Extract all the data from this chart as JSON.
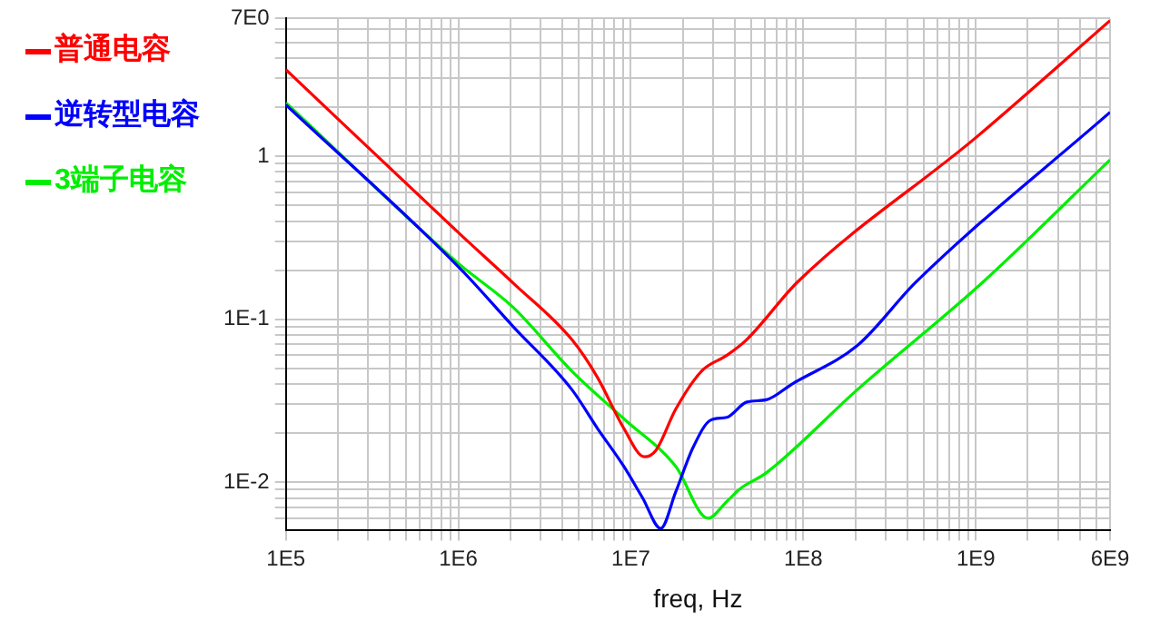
{
  "chart_data": {
    "type": "line",
    "xlabel": "freq, Hz",
    "log": "xy",
    "grid": true,
    "legend": "top left",
    "marker": "none",
    "line_style": "solid",
    "xlim": [
      100000,
      6000000000
    ],
    "ylim": [
      0.0051,
      7
    ],
    "xticks": [
      {
        "value": 100000,
        "label": "1E5"
      },
      {
        "value": 200000,
        "label": null
      },
      {
        "value": 300000,
        "label": null
      },
      {
        "value": 400000,
        "label": null
      },
      {
        "value": 500000,
        "label": null
      },
      {
        "value": 600000,
        "label": null
      },
      {
        "value": 700000,
        "label": null
      },
      {
        "value": 800000,
        "label": null
      },
      {
        "value": 900000,
        "label": null
      },
      {
        "value": 1000000,
        "label": "1E6"
      },
      {
        "value": 2000000,
        "label": null
      },
      {
        "value": 3000000,
        "label": null
      },
      {
        "value": 4000000,
        "label": null
      },
      {
        "value": 5000000,
        "label": null
      },
      {
        "value": 6000000,
        "label": null
      },
      {
        "value": 7000000,
        "label": null
      },
      {
        "value": 8000000,
        "label": null
      },
      {
        "value": 9000000,
        "label": null
      },
      {
        "value": 10000000,
        "label": "1E7"
      },
      {
        "value": 20000000,
        "label": null
      },
      {
        "value": 30000000,
        "label": null
      },
      {
        "value": 40000000,
        "label": null
      },
      {
        "value": 50000000,
        "label": null
      },
      {
        "value": 60000000,
        "label": null
      },
      {
        "value": 70000000,
        "label": null
      },
      {
        "value": 80000000,
        "label": null
      },
      {
        "value": 90000000,
        "label": null
      },
      {
        "value": 100000000,
        "label": "1E8"
      },
      {
        "value": 200000000,
        "label": null
      },
      {
        "value": 300000000,
        "label": null
      },
      {
        "value": 400000000,
        "label": null
      },
      {
        "value": 500000000,
        "label": null
      },
      {
        "value": 600000000,
        "label": null
      },
      {
        "value": 700000000,
        "label": null
      },
      {
        "value": 800000000,
        "label": null
      },
      {
        "value": 900000000,
        "label": null
      },
      {
        "value": 1000000000,
        "label": "1E9"
      },
      {
        "value": 2000000000,
        "label": null
      },
      {
        "value": 3000000000,
        "label": null
      },
      {
        "value": 4000000000,
        "label": null
      },
      {
        "value": 5000000000,
        "label": null
      },
      {
        "value": 6000000000,
        "label": "6E9"
      }
    ],
    "yticks": [
      {
        "value": 0.006,
        "label": null
      },
      {
        "value": 0.007,
        "label": null
      },
      {
        "value": 0.008,
        "label": null
      },
      {
        "value": 0.009,
        "label": null
      },
      {
        "value": 0.01,
        "label": "1E-2"
      },
      {
        "value": 0.02,
        "label": null
      },
      {
        "value": 0.03,
        "label": null
      },
      {
        "value": 0.04,
        "label": null
      },
      {
        "value": 0.05,
        "label": null
      },
      {
        "value": 0.06,
        "label": null
      },
      {
        "value": 0.07,
        "label": null
      },
      {
        "value": 0.08,
        "label": null
      },
      {
        "value": 0.09,
        "label": null
      },
      {
        "value": 0.1,
        "label": "1E-1"
      },
      {
        "value": 0.2,
        "label": null
      },
      {
        "value": 0.3,
        "label": null
      },
      {
        "value": 0.4,
        "label": null
      },
      {
        "value": 0.5,
        "label": null
      },
      {
        "value": 0.6,
        "label": null
      },
      {
        "value": 0.7,
        "label": null
      },
      {
        "value": 0.8,
        "label": null
      },
      {
        "value": 0.9,
        "label": null
      },
      1,
      {
        "value": 2,
        "label": null
      },
      {
        "value": 3,
        "label": null
      },
      {
        "value": 4,
        "label": null
      },
      {
        "value": 5,
        "label": null
      },
      {
        "value": 6,
        "label": null
      },
      {
        "value": 7,
        "label": "7E0"
      }
    ],
    "series": [
      {
        "name": "普通电容",
        "color": "#ff0000",
        "x": [
          100000,
          1000000,
          2100000,
          4550000,
          6400000,
          9100000,
          12000000,
          14000000,
          18200000,
          25700000,
          36000000,
          47000000,
          93000000,
          1000000000,
          6000000000
        ],
        "values": [
          3.4,
          0.34,
          0.165,
          0.075,
          0.044,
          0.0214,
          0.0143,
          0.0157,
          0.028,
          0.048,
          0.06,
          0.075,
          0.17,
          1.3,
          6.8
        ]
      },
      {
        "name": "逆转型电容",
        "color": "#0000ff",
        "x": [
          100000,
          1000000,
          2080000,
          4550000,
          6400000,
          9100000,
          11700000,
          14900000,
          18200000,
          23000000,
          29000000,
          36000000,
          47000000,
          61000000,
          86000000,
          206000000,
          450000000,
          6000000000
        ],
        "values": [
          2.07,
          0.21,
          0.09,
          0.037,
          0.0214,
          0.0125,
          0.008,
          0.0052,
          0.0087,
          0.0164,
          0.024,
          0.025,
          0.031,
          0.032,
          0.04,
          0.069,
          0.169,
          1.86
        ]
      },
      {
        "name": "3端子电容",
        "color": "#00ee00",
        "x": [
          100000,
          1000000,
          2080000,
          4550000,
          9100000,
          18200000,
          28000000,
          36000000,
          43000000,
          61000000,
          206000000,
          1100000000,
          6000000000
        ],
        "values": [
          2.13,
          0.22,
          0.118,
          0.048,
          0.0245,
          0.0125,
          0.006,
          0.0076,
          0.0091,
          0.0114,
          0.037,
          0.169,
          0.95
        ]
      }
    ]
  }
}
